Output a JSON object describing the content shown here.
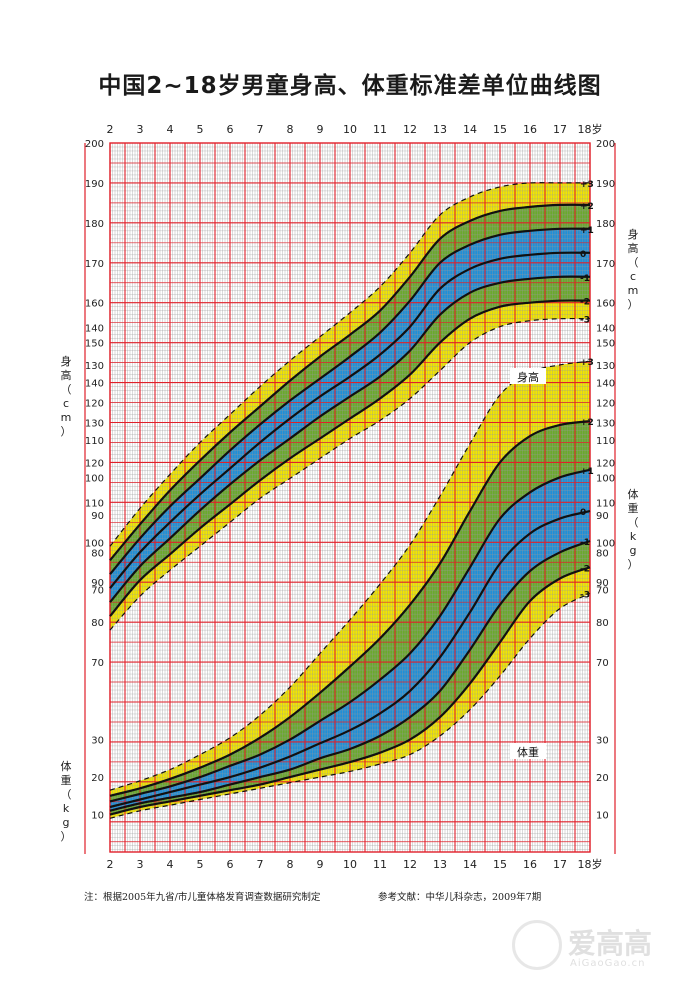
{
  "title": "中国2~18岁男童身高、体重标准差单位曲线图",
  "footnote_left": "注：根据2005年九省/市儿童体格发育调查数据研究制定",
  "footnote_right": "参考文献：中华儿科杂志，2009年7期",
  "watermark": {
    "brand": "爱高高",
    "site": "AiGaoGao.cn",
    "icon": "aigaogao-logo-icon"
  },
  "colors": {
    "band_yellow": "#f2e600",
    "band_green": "#6aaa2c",
    "band_blue": "#1f8fd8",
    "major_grid": "#e0202a",
    "minor_grid": "#9a9a9a",
    "curve": "#111111"
  },
  "chart_data": {
    "type": "line",
    "xlabel_unit": "岁",
    "x_ticks": [
      2,
      3,
      4,
      5,
      6,
      7,
      8,
      9,
      10,
      11,
      12,
      13,
      14,
      15,
      16,
      17,
      18
    ],
    "xlim": [
      2,
      18
    ],
    "grid": true,
    "height_panel": {
      "label": "身高",
      "axis_label": "身高（cm）",
      "ylim": [
        60,
        200
      ],
      "ticks": [
        70,
        80,
        90,
        100,
        110,
        120,
        130,
        140,
        150,
        160,
        170,
        180,
        190,
        200
      ],
      "x": [
        2,
        3,
        4,
        5,
        6,
        7,
        8,
        9,
        10,
        11,
        12,
        13,
        14,
        15,
        16,
        17,
        18
      ],
      "series": [
        {
          "name": "-3",
          "values": [
            78,
            86.5,
            93,
            99,
            105,
            111,
            116,
            121,
            126,
            130.5,
            136,
            143,
            150,
            154,
            155.5,
            156,
            156
          ]
        },
        {
          "name": "-2",
          "values": [
            81.5,
            90.5,
            97,
            103.5,
            109.5,
            115.5,
            121,
            126,
            131,
            136,
            142,
            150,
            156,
            159,
            160,
            160.5,
            160.5
          ]
        },
        {
          "name": "-1",
          "values": [
            85,
            94,
            101,
            108,
            114.5,
            120.5,
            126,
            131.5,
            136.5,
            141.5,
            148,
            157,
            162.5,
            165,
            166,
            166.5,
            166.5
          ]
        },
        {
          "name": "0",
          "values": [
            88.5,
            97.5,
            105,
            112,
            118.5,
            125,
            131,
            136.5,
            141.5,
            147,
            154,
            163.5,
            168.5,
            171,
            172,
            172.5,
            172.5
          ]
        },
        {
          "name": "+1",
          "values": [
            92,
            101,
            109,
            116,
            123,
            129.5,
            135.5,
            141,
            146.5,
            152.5,
            160.5,
            170,
            174.5,
            177,
            178,
            178.5,
            178.5
          ]
        },
        {
          "name": "+2",
          "values": [
            95.5,
            104.5,
            113,
            120.5,
            127.5,
            134,
            140.5,
            146.5,
            152,
            158,
            166.5,
            176,
            180.5,
            183,
            184,
            184.5,
            184.5
          ]
        },
        {
          "name": "+3",
          "values": [
            99,
            108.5,
            117,
            125,
            132,
            139,
            145.5,
            151.5,
            157.5,
            164,
            172.5,
            182,
            186.5,
            189,
            190,
            190,
            190
          ]
        }
      ]
    },
    "weight_panel": {
      "label": "体重",
      "axis_label": "体重（kg）",
      "ylim": [
        0,
        150
      ],
      "ticks": [
        10,
        20,
        30,
        70,
        80,
        90,
        100,
        110,
        120,
        130,
        140
      ],
      "x": [
        2,
        3,
        4,
        5,
        6,
        7,
        8,
        9,
        10,
        11,
        12,
        13,
        14,
        15,
        16,
        17,
        18
      ],
      "series": [
        {
          "name": "-3",
          "values": [
            9,
            11,
            12.5,
            14,
            15.5,
            17,
            18.5,
            20,
            21.5,
            23.5,
            26,
            31,
            38,
            47,
            57,
            65,
            69
          ]
        },
        {
          "name": "-2",
          "values": [
            10,
            12,
            13.5,
            15,
            16.5,
            18,
            20,
            22,
            24,
            26.5,
            30,
            36,
            45,
            56,
            67,
            73,
            76
          ]
        },
        {
          "name": "-1",
          "values": [
            11,
            13,
            14.5,
            16,
            18,
            20,
            22,
            25,
            27.5,
            31,
            36,
            43,
            54,
            66,
            75,
            80,
            83
          ]
        },
        {
          "name": "0",
          "values": [
            12,
            14,
            16,
            18,
            20,
            22.5,
            25.5,
            29,
            32.5,
            37,
            43,
            52,
            64,
            77,
            85,
            89,
            91
          ]
        },
        {
          "name": "+1",
          "values": [
            13.5,
            15.5,
            17.5,
            20,
            23,
            26,
            30,
            35,
            40,
            46,
            53,
            63,
            76,
            89,
            96,
            100,
            102
          ]
        },
        {
          "name": "+2",
          "values": [
            15,
            17,
            19.5,
            22.5,
            26,
            30.5,
            36,
            42.5,
            49.5,
            57,
            66,
            77,
            91,
            104,
            111,
            114,
            115
          ]
        },
        {
          "name": "+3",
          "values": [
            16.5,
            19,
            22,
            26,
            30.5,
            36.5,
            44,
            53,
            62,
            71.5,
            82,
            95,
            109,
            122,
            128,
            130,
            131
          ]
        }
      ]
    }
  }
}
